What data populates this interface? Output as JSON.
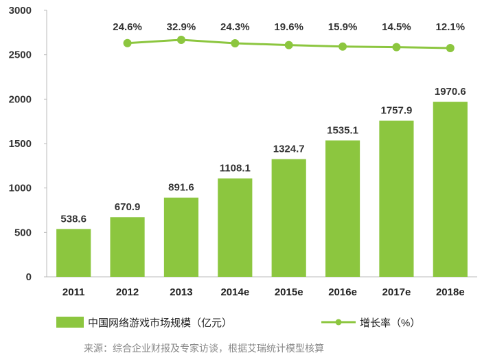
{
  "chart_data": {
    "type": "bar",
    "categories": [
      "2011",
      "2012",
      "2013",
      "2014e",
      "2015e",
      "2016e",
      "2017e",
      "2018e"
    ],
    "series": [
      {
        "name": "中国网络游戏市场规模（亿元）",
        "type": "bar",
        "axis": "left",
        "values": [
          538.6,
          670.9,
          891.6,
          1108.1,
          1324.7,
          1535.1,
          1757.9,
          1970.6
        ],
        "labels": [
          "538.6",
          "670.9",
          "891.6",
          "1108.1",
          "1324.7",
          "1535.1",
          "1757.9",
          "1970.6"
        ],
        "color": "#8cc63f"
      },
      {
        "name": "增长率（%）",
        "type": "line",
        "axis": "right-hidden",
        "values": [
          null,
          24.6,
          32.9,
          24.3,
          19.6,
          15.9,
          14.5,
          12.1
        ],
        "labels": [
          "",
          "24.6%",
          "32.9%",
          "24.3%",
          "19.6%",
          "15.9%",
          "14.5%",
          "12.1%"
        ],
        "color": "#8cc63f"
      }
    ],
    "yticks": [
      "0",
      "500",
      "1000",
      "1500",
      "2000",
      "2500",
      "3000"
    ],
    "ylim": [
      0,
      3000
    ],
    "grid": false,
    "legend_position": "bottom",
    "source": "来源：综合企业财报及专家访谈，根据艾瑞统计模型核算"
  }
}
